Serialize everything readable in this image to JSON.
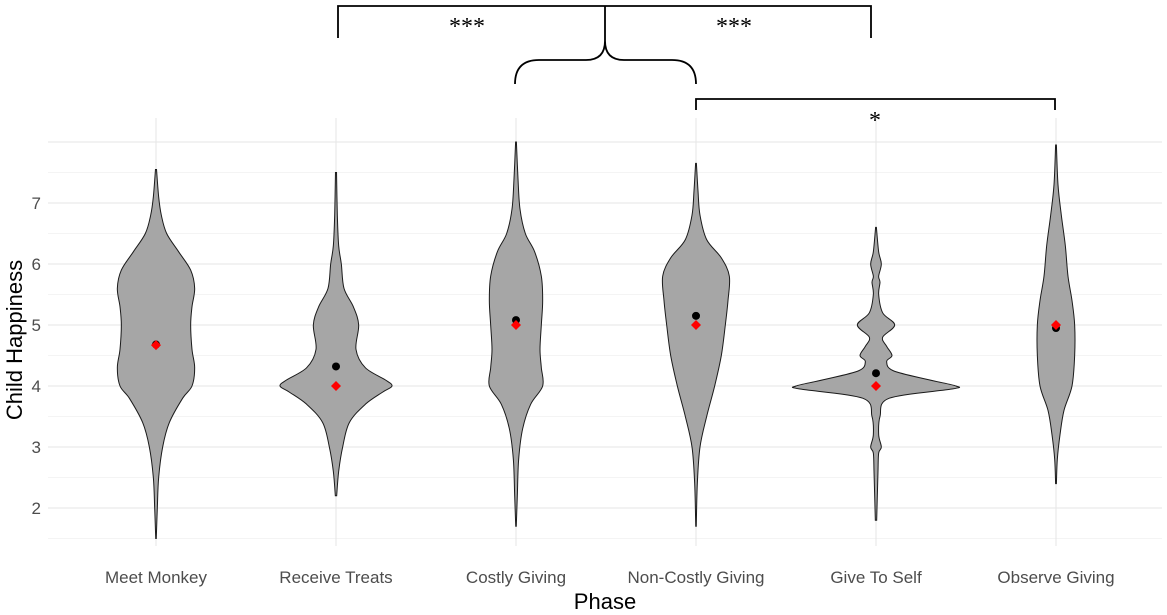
{
  "chart_data": {
    "type": "violin",
    "title": "",
    "xlabel": "Phase",
    "ylabel": "Child Happiness",
    "ylim": [
      1.5,
      7.5
    ],
    "yticks": [
      2,
      3,
      4,
      5,
      6,
      7
    ],
    "grid": true,
    "categories": [
      "Meet Monkey",
      "Receive Treats",
      "Costly Giving",
      "Non-Costly Giving",
      "Give To Self",
      "Observe Giving"
    ],
    "series": [
      {
        "category": "Meet Monkey",
        "range": [
          1.5,
          7.55
        ],
        "mean": 4.68,
        "median": 4.67,
        "density": [
          [
            1.5,
            0.002
          ],
          [
            2.0,
            0.01
          ],
          [
            2.5,
            0.02
          ],
          [
            3.0,
            0.05
          ],
          [
            3.4,
            0.1
          ],
          [
            3.8,
            0.2
          ],
          [
            4.0,
            0.27
          ],
          [
            4.3,
            0.29
          ],
          [
            4.6,
            0.27
          ],
          [
            5.0,
            0.26
          ],
          [
            5.3,
            0.27
          ],
          [
            5.6,
            0.29
          ],
          [
            5.9,
            0.26
          ],
          [
            6.2,
            0.17
          ],
          [
            6.5,
            0.08
          ],
          [
            6.8,
            0.04
          ],
          [
            7.1,
            0.02
          ],
          [
            7.55,
            0.004
          ]
        ]
      },
      {
        "category": "Receive Treats",
        "range": [
          2.2,
          7.5
        ],
        "mean": 4.32,
        "median": 4.0,
        "density": [
          [
            2.2,
            0.005
          ],
          [
            2.6,
            0.02
          ],
          [
            3.0,
            0.05
          ],
          [
            3.4,
            0.1
          ],
          [
            3.7,
            0.22
          ],
          [
            3.9,
            0.35
          ],
          [
            4.0,
            0.42
          ],
          [
            4.1,
            0.37
          ],
          [
            4.3,
            0.22
          ],
          [
            4.6,
            0.15
          ],
          [
            5.0,
            0.17
          ],
          [
            5.3,
            0.13
          ],
          [
            5.6,
            0.06
          ],
          [
            6.0,
            0.04
          ],
          [
            6.3,
            0.02
          ],
          [
            6.8,
            0.01
          ],
          [
            7.5,
            0.004
          ]
        ]
      },
      {
        "category": "Costly Giving",
        "range": [
          1.7,
          8.0
        ],
        "mean": 5.08,
        "median": 5.0,
        "density": [
          [
            1.7,
            0.002
          ],
          [
            2.2,
            0.01
          ],
          [
            2.8,
            0.02
          ],
          [
            3.3,
            0.05
          ],
          [
            3.7,
            0.11
          ],
          [
            4.0,
            0.2
          ],
          [
            4.3,
            0.19
          ],
          [
            4.6,
            0.18
          ],
          [
            5.0,
            0.19
          ],
          [
            5.4,
            0.2
          ],
          [
            5.8,
            0.19
          ],
          [
            6.2,
            0.14
          ],
          [
            6.5,
            0.07
          ],
          [
            6.9,
            0.03
          ],
          [
            7.4,
            0.015
          ],
          [
            8.0,
            0.003
          ]
        ]
      },
      {
        "category": "Non-Costly Giving",
        "range": [
          1.7,
          7.65
        ],
        "mean": 5.15,
        "median": 5.0,
        "density": [
          [
            1.7,
            0.002
          ],
          [
            2.4,
            0.01
          ],
          [
            3.0,
            0.03
          ],
          [
            3.5,
            0.08
          ],
          [
            4.0,
            0.14
          ],
          [
            4.5,
            0.19
          ],
          [
            5.0,
            0.22
          ],
          [
            5.4,
            0.24
          ],
          [
            5.8,
            0.25
          ],
          [
            6.1,
            0.19
          ],
          [
            6.4,
            0.08
          ],
          [
            6.8,
            0.03
          ],
          [
            7.2,
            0.015
          ],
          [
            7.65,
            0.003
          ]
        ]
      },
      {
        "category": "Give To Self",
        "range": [
          1.8,
          6.6
        ],
        "mean": 4.21,
        "median": 4.0,
        "density": [
          [
            1.8,
            0.005
          ],
          [
            2.2,
            0.01
          ],
          [
            2.6,
            0.015
          ],
          [
            2.9,
            0.02
          ],
          [
            3.0,
            0.04
          ],
          [
            3.2,
            0.02
          ],
          [
            3.5,
            0.03
          ],
          [
            3.8,
            0.1
          ],
          [
            3.95,
            0.57
          ],
          [
            4.0,
            0.6
          ],
          [
            4.1,
            0.4
          ],
          [
            4.25,
            0.13
          ],
          [
            4.4,
            0.08
          ],
          [
            4.5,
            0.12
          ],
          [
            4.65,
            0.08
          ],
          [
            4.8,
            0.05
          ],
          [
            5.0,
            0.14
          ],
          [
            5.2,
            0.05
          ],
          [
            5.5,
            0.02
          ],
          [
            5.7,
            0.03
          ],
          [
            5.8,
            0.02
          ],
          [
            6.0,
            0.04
          ],
          [
            6.2,
            0.02
          ],
          [
            6.6,
            0.003
          ]
        ]
      },
      {
        "category": "Observe Giving",
        "range": [
          2.4,
          7.95
        ],
        "mean": 4.95,
        "median": 5.0,
        "density": [
          [
            2.4,
            0.003
          ],
          [
            2.8,
            0.01
          ],
          [
            3.2,
            0.03
          ],
          [
            3.6,
            0.06
          ],
          [
            4.0,
            0.12
          ],
          [
            4.5,
            0.14
          ],
          [
            5.0,
            0.14
          ],
          [
            5.4,
            0.12
          ],
          [
            5.8,
            0.09
          ],
          [
            6.3,
            0.07
          ],
          [
            6.8,
            0.04
          ],
          [
            7.3,
            0.015
          ],
          [
            7.95,
            0.003
          ]
        ]
      }
    ],
    "mean_marker": {
      "shape": "circle",
      "color": "#000000"
    },
    "median_marker": {
      "shape": "diamond",
      "color": "#ff0000"
    },
    "violin_fill": "#a6a6a6",
    "significance": [
      {
        "label": "***",
        "from": "Receive Treats",
        "to": "Costly Giving & Non-Costly Giving"
      },
      {
        "label": "***",
        "from": "Costly Giving & Non-Costly Giving",
        "to": "Give To Self"
      },
      {
        "label": "*",
        "from": "Non-Costly Giving",
        "to": "Observe Giving"
      }
    ]
  }
}
